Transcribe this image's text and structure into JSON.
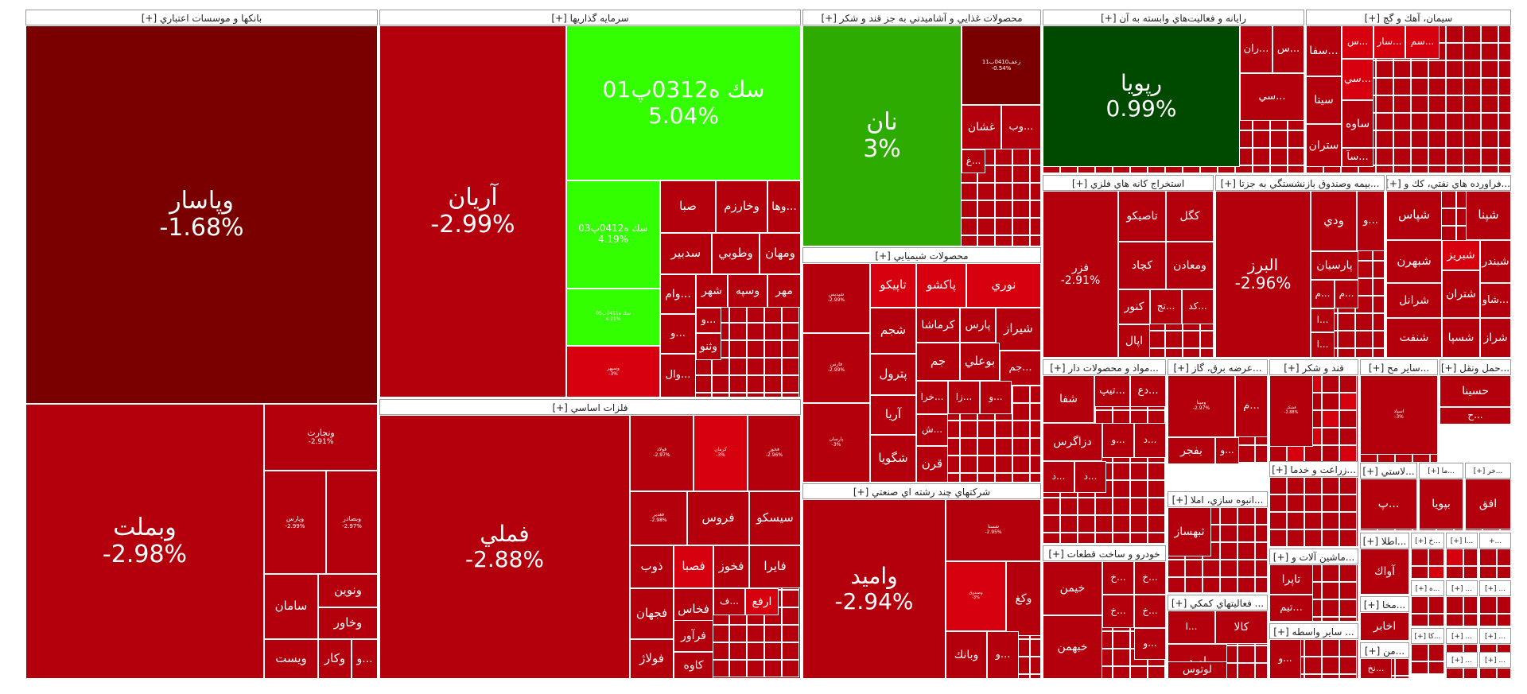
{
  "colors": {
    "deep_red": "#7a0000",
    "red": "#b3000c",
    "bright_red": "#d7000e",
    "dark_green": "#004a00",
    "green": "#2eab00",
    "bright_green": "#33ff00"
  },
  "chart_data": {
    "type": "treemap",
    "sectors": [
      {
        "name": "بانکها و موسسات اعتباري [+]",
        "stocks": [
          {
            "name": "وپاسار",
            "change": "-1.68%"
          },
          {
            "name": "وبملت",
            "change": "-2.98%"
          },
          {
            "name": "ونجارت",
            "change": "-2.91%"
          },
          {
            "name": "وپارس",
            "change": "-2.99%"
          },
          {
            "name": "وبصادر",
            "change": "-2.97%"
          },
          {
            "name": "سامان",
            "change": ""
          },
          {
            "name": "ونوين",
            "change": ""
          },
          {
            "name": "وخاور",
            "change": ""
          },
          {
            "name": "ويست",
            "change": ""
          },
          {
            "name": "وكار",
            "change": ""
          },
          {
            "name": "...و",
            "change": ""
          }
        ]
      },
      {
        "name": "سرمايه گذاريها [+]",
        "stocks": [
          {
            "name": "آريان",
            "change": "-2.99%"
          },
          {
            "name": "سك ه0312پ01",
            "change": "5.04%"
          },
          {
            "name": "سك ه0412پ03",
            "change": "4.19%"
          },
          {
            "name": "سك ه0411پ05",
            "change": "4.21%"
          },
          {
            "name": "وسپهر",
            "change": "-3%"
          },
          {
            "name": "صبا",
            "change": ""
          },
          {
            "name": "وخارزم",
            "change": ""
          },
          {
            "name": "...وها",
            "change": ""
          },
          {
            "name": "سدبير",
            "change": ""
          },
          {
            "name": "وطوبي",
            "change": ""
          },
          {
            "name": "ومهان",
            "change": ""
          },
          {
            "name": "...وام",
            "change": ""
          },
          {
            "name": "شهر",
            "change": ""
          },
          {
            "name": "وسپه",
            "change": ""
          },
          {
            "name": "مهر",
            "change": ""
          },
          {
            "name": "...و",
            "change": ""
          },
          {
            "name": "...و",
            "change": ""
          },
          {
            "name": "وثنو",
            "change": ""
          },
          {
            "name": "...وال",
            "change": ""
          }
        ]
      },
      {
        "name": "فلزات اساسي [+]",
        "stocks": [
          {
            "name": "فملي",
            "change": "-2.88%"
          },
          {
            "name": "فولاد",
            "change": "-2.97%"
          },
          {
            "name": "كرمان",
            "change": "-3%"
          },
          {
            "name": "فخوز",
            "change": "-2.96%"
          },
          {
            "name": "فغدير",
            "change": "-2.98%"
          },
          {
            "name": "فروس",
            "change": ""
          },
          {
            "name": "سيسكو",
            "change": ""
          },
          {
            "name": "ذوب",
            "change": ""
          },
          {
            "name": "فصبا",
            "change": ""
          },
          {
            "name": "فخوز",
            "change": ""
          },
          {
            "name": "فايرا",
            "change": ""
          },
          {
            "name": "فجهان",
            "change": ""
          },
          {
            "name": "فخاس",
            "change": ""
          },
          {
            "name": "...ف",
            "change": ""
          },
          {
            "name": "ارفع",
            "change": ""
          },
          {
            "name": "فرآور",
            "change": ""
          },
          {
            "name": "فولاژ",
            "change": ""
          },
          {
            "name": "كاوه",
            "change": ""
          }
        ]
      },
      {
        "name": "محصولات غذايي و آشاميدني به جز قند و شكر [+]",
        "stocks": [
          {
            "name": "نان",
            "change": "3%"
          },
          {
            "name": "زعف0410ب11",
            "change": "-0.54%"
          },
          {
            "name": "غشان",
            "change": ""
          },
          {
            "name": "...وب",
            "change": ""
          },
          {
            "name": "...غ",
            "change": ""
          }
        ]
      },
      {
        "name": "محصولات شيميايي [+]",
        "stocks": [
          {
            "name": "شپديس",
            "change": "-2.99%"
          },
          {
            "name": "فارس",
            "change": "-2.99%"
          },
          {
            "name": "پارسان",
            "change": "-3%"
          },
          {
            "name": "تاپيكو",
            "change": ""
          },
          {
            "name": "پاكشو",
            "change": ""
          },
          {
            "name": "نوري",
            "change": ""
          },
          {
            "name": "شجم",
            "change": ""
          },
          {
            "name": "كرماشا",
            "change": ""
          },
          {
            "name": "پارس",
            "change": ""
          },
          {
            "name": "شيراز",
            "change": ""
          },
          {
            "name": "پترول",
            "change": ""
          },
          {
            "name": "جم",
            "change": ""
          },
          {
            "name": "بوعلي",
            "change": ""
          },
          {
            "name": "...جم",
            "change": ""
          },
          {
            "name": "آريا",
            "change": ""
          },
          {
            "name": "...خرا",
            "change": ""
          },
          {
            "name": "...زا",
            "change": ""
          },
          {
            "name": "...و",
            "change": ""
          },
          {
            "name": "...ش",
            "change": ""
          },
          {
            "name": "شگويا",
            "change": ""
          },
          {
            "name": "قرن",
            "change": ""
          }
        ]
      },
      {
        "name": "شركتهاي چند رشته اي صنعتي [+]",
        "stocks": [
          {
            "name": "واميد",
            "change": "-2.94%"
          },
          {
            "name": "شستا",
            "change": "-2.95%"
          },
          {
            "name": "وصندوق",
            "change": "-3%"
          },
          {
            "name": "وكغ",
            "change": ""
          },
          {
            "name": "وبانك",
            "change": ""
          },
          {
            "name": "...و",
            "change": ""
          }
        ]
      },
      {
        "name": "رايانه و فعاليت‌هاي وابسته به آن [+]",
        "stocks": [
          {
            "name": "رپويا",
            "change": "0.99%"
          },
          {
            "name": "...ران",
            "change": ""
          },
          {
            "name": "...س",
            "change": ""
          },
          {
            "name": "...سي",
            "change": ""
          }
        ]
      },
      {
        "name": "سيمان، آهك و گچ [+]",
        "stocks": [
          {
            "name": "...سفا",
            "change": ""
          },
          {
            "name": "...س",
            "change": ""
          },
          {
            "name": "...سار",
            "change": ""
          },
          {
            "name": "...سم",
            "change": ""
          },
          {
            "name": "...سي",
            "change": ""
          },
          {
            "name": "سيتا",
            "change": ""
          },
          {
            "name": "ساوه",
            "change": ""
          },
          {
            "name": "ستران",
            "change": ""
          },
          {
            "name": "...سآ",
            "change": ""
          }
        ]
      },
      {
        "name": "استخراج كانه هاي فلزي [+]",
        "stocks": [
          {
            "name": "فزر",
            "change": "-2.91%"
          },
          {
            "name": "تاصيكو",
            "change": ""
          },
          {
            "name": "كگل",
            "change": ""
          },
          {
            "name": "كچاد",
            "change": ""
          },
          {
            "name": "ومعادن",
            "change": ""
          },
          {
            "name": "كنور",
            "change": ""
          },
          {
            "name": "...تج",
            "change": ""
          },
          {
            "name": "...كد",
            "change": ""
          },
          {
            "name": "اپال",
            "change": ""
          }
        ]
      },
      {
        "name": "...بيمه وصندوق بازنشستگي به جزتا [+]",
        "stocks": [
          {
            "name": "البرز",
            "change": "-2.96%"
          },
          {
            "name": "ودي",
            "change": ""
          },
          {
            "name": "...و",
            "change": ""
          },
          {
            "name": "پارسيان",
            "change": ""
          },
          {
            "name": "...م",
            "change": ""
          },
          {
            "name": "...م",
            "change": ""
          },
          {
            "name": "...ا",
            "change": ""
          },
          {
            "name": "...ا",
            "change": ""
          }
        ]
      },
      {
        "name": "...فراورده هاي نفتي، كك و [+]",
        "stocks": [
          {
            "name": "شپنا",
            "change": ""
          },
          {
            "name": "شپاس",
            "change": ""
          },
          {
            "name": "شبندر",
            "change": ""
          },
          {
            "name": "شبريز",
            "change": ""
          },
          {
            "name": "شبهرن",
            "change": ""
          },
          {
            "name": "...شاو",
            "change": ""
          },
          {
            "name": "شتران",
            "change": ""
          },
          {
            "name": "شرانل",
            "change": ""
          },
          {
            "name": "شراز",
            "change": ""
          },
          {
            "name": "شسپا",
            "change": ""
          },
          {
            "name": "شنفت",
            "change": ""
          }
        ]
      },
      {
        "name": "...مواد و محصولات دار [+]",
        "stocks": [
          {
            "name": "شفا",
            "change": ""
          },
          {
            "name": "...تيپ",
            "change": ""
          },
          {
            "name": "...دع",
            "change": ""
          },
          {
            "name": "دزاگرس",
            "change": ""
          },
          {
            "name": "...و",
            "change": ""
          },
          {
            "name": "...د",
            "change": ""
          },
          {
            "name": "...د",
            "change": ""
          },
          {
            "name": "...د",
            "change": ""
          }
        ]
      },
      {
        "name": "...عرضه برق، گاز [+]",
        "stocks": [
          {
            "name": "ومپنا",
            "change": "-2.97%"
          },
          {
            "name": "...م",
            "change": ""
          },
          {
            "name": "بفجر",
            "change": ""
          },
          {
            "name": "...و",
            "change": ""
          }
        ]
      },
      {
        "name": "قند و شكر [+]",
        "stocks": [
          {
            "name": "قشكر",
            "change": "-2.88%"
          }
        ]
      },
      {
        "name": "...ساير مح [+]",
        "stocks": [
          {
            "name": "اسپاد",
            "change": "-3%"
          }
        ]
      },
      {
        "name": "...حمل ونقل [+]",
        "stocks": [
          {
            "name": "حسينا",
            "change": ""
          },
          {
            "name": "...ح",
            "change": ""
          }
        ]
      },
      {
        "name": "...انبوه سازي، املا [+]",
        "stocks": [
          {
            "name": "ثبهساز",
            "change": ""
          }
        ]
      },
      {
        "name": "...زراعت و خدما [+]",
        "stocks": []
      },
      {
        "name": "...لاستي [+]",
        "stocks": [
          {
            "name": "...پ",
            "change": ""
          }
        ]
      },
      {
        "name": "...ما [+]",
        "stocks": [
          {
            "name": "بپويا",
            "change": ""
          }
        ]
      },
      {
        "name": "...خر [+]",
        "stocks": [
          {
            "name": "افق",
            "change": ""
          }
        ]
      },
      {
        "name": "خودرو و ساخت قطعات [+]",
        "stocks": [
          {
            "name": "خيمن",
            "change": ""
          },
          {
            "name": "خبهمن",
            "change": ""
          },
          {
            "name": "...خ",
            "change": ""
          },
          {
            "name": "...خ",
            "change": ""
          },
          {
            "name": "...خ",
            "change": ""
          },
          {
            "name": "...خ",
            "change": ""
          },
          {
            "name": "...و",
            "change": ""
          }
        ]
      },
      {
        "name": "... فعاليتهاي كمكي [+]",
        "stocks": [
          {
            "name": "كالا",
            "change": ""
          },
          {
            "name": "...ا",
            "change": ""
          },
          {
            "name": "اميد",
            "change": ""
          },
          {
            "name": "لوتوس",
            "change": ""
          }
        ]
      },
      {
        "name": "...ماشين آلات و [+]",
        "stocks": [
          {
            "name": "تاپرا",
            "change": ""
          },
          {
            "name": "...تيم",
            "change": ""
          }
        ]
      },
      {
        "name": "... ساير واسطه [+]",
        "stocks": [
          {
            "name": "...و",
            "change": ""
          }
        ]
      },
      {
        "name": "...اطلا [+]",
        "stocks": [
          {
            "name": "آواك",
            "change": ""
          }
        ]
      },
      {
        "name": "...مخا [+]",
        "stocks": [
          {
            "name": "اخابر",
            "change": ""
          }
        ]
      },
      {
        "name": "...من [+]",
        "stocks": [
          {
            "name": "...نخ",
            "change": ""
          }
        ]
      },
      {
        "name": "...خ [+]",
        "stocks": []
      },
      {
        "name": "...ه [+]",
        "stocks": []
      },
      {
        "name": "...كا [+]",
        "stocks": []
      },
      {
        "name": "...ا [+]",
        "stocks": []
      },
      {
        "name": "...+",
        "stocks": []
      },
      {
        "name": "... [+]",
        "stocks": []
      },
      {
        "name": "... [+]",
        "stocks": []
      },
      {
        "name": "... [+]",
        "stocks": []
      },
      {
        "name": "... [+]",
        "stocks": []
      },
      {
        "name": "... [+]",
        "stocks": []
      },
      {
        "name": "... [+]",
        "stocks": []
      }
    ]
  }
}
